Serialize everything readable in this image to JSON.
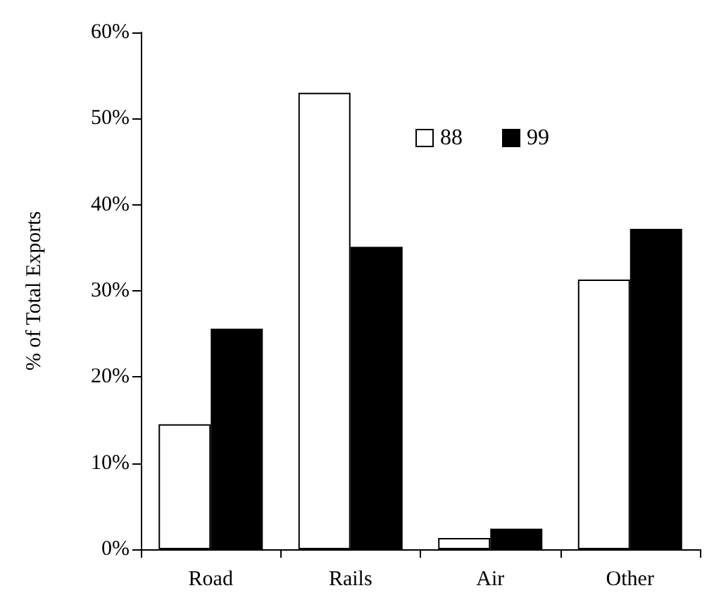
{
  "chart_data": {
    "type": "bar",
    "ylabel": "% of Total Exports",
    "categories": [
      "Road",
      "Rails",
      "Air",
      "Other"
    ],
    "series": [
      {
        "name": "88",
        "color": "#ffffff",
        "values": [
          14.5,
          53,
          1.3,
          31.3
        ]
      },
      {
        "name": "99",
        "color": "#000000",
        "values": [
          25.6,
          35.1,
          2.4,
          37.2
        ]
      }
    ],
    "ylim": [
      0,
      60
    ],
    "yticks": [
      {
        "value": 0,
        "label": "0%"
      },
      {
        "value": 10,
        "label": "10%"
      },
      {
        "value": 20,
        "label": "20%"
      },
      {
        "value": 30,
        "label": "30%"
      },
      {
        "value": 40,
        "label": "40%"
      },
      {
        "value": 50,
        "label": "50%"
      },
      {
        "value": 60,
        "label": "60%"
      }
    ],
    "grid": false,
    "legend": "top"
  }
}
